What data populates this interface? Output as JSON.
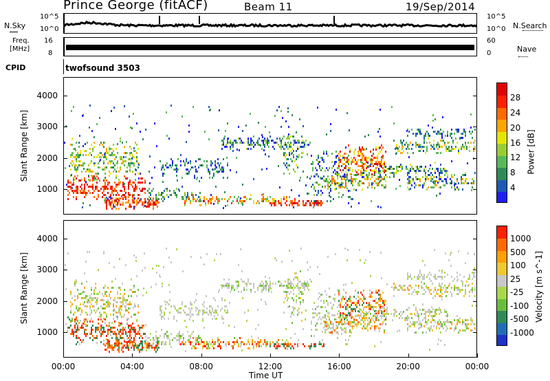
{
  "header": {
    "station": "Prince George (fitACF)",
    "beam": "Beam 11",
    "date": "19/Sep/2014"
  },
  "noise_panel": {
    "left_label": "N.Sky",
    "right_label": "N.Search",
    "tick_top": "10^5",
    "tick_bottom": "10^0",
    "tick_top_right": "10^5",
    "tick_bottom_right": "10^0"
  },
  "freq_panel": {
    "left_label_1": "Freq.",
    "left_label_2": "[MHz]",
    "left_tick_top": "16",
    "left_tick_bottom": "8",
    "right_label": "Nave",
    "right_tick_top": "60",
    "right_tick_bottom": "0"
  },
  "cpid_panel": {
    "label": "CPID",
    "value": "twofsound 3503"
  },
  "chart_data": [
    {
      "type": "heatmap",
      "name": "power",
      "ylabel": "Slant Range [km]",
      "yticks": [
        "1000",
        "2000",
        "3000",
        "4000"
      ],
      "ylim": [
        180,
        4600
      ],
      "xlim": [
        0,
        24
      ],
      "colorbar_label": "Power [dB]",
      "colorbar_ticks": [
        "4",
        "8",
        "12",
        "16",
        "20",
        "24",
        "28"
      ],
      "colorbar_colors": [
        "#1e1ef0",
        "#1e5ab4",
        "#2e8b57",
        "#58b95a",
        "#9acd32",
        "#e6e600",
        "#ffa500",
        "#ff6a00",
        "#ff2000",
        "#e00000"
      ]
    },
    {
      "type": "heatmap",
      "name": "velocity",
      "ylabel": "Slant Range [km]",
      "yticks": [
        "1000",
        "2000",
        "3000",
        "4000"
      ],
      "ylim": [
        180,
        4600
      ],
      "xlim": [
        0,
        24
      ],
      "colorbar_label": "Velocity [m s^-1]",
      "colorbar_ticks": [
        "1000",
        "500",
        "100",
        "25",
        "-25",
        "-100",
        "-500",
        "-1000"
      ],
      "colorbar_colors": [
        "#1e32c8",
        "#1e6eb4",
        "#2e8b57",
        "#6abf3a",
        "#a9d94a",
        "#c8c8c8",
        "#f0c830",
        "#ffa000",
        "#ff6a00",
        "#ff2000"
      ]
    }
  ],
  "xaxis": {
    "ticks": [
      "00:00",
      "04:00",
      "08:00",
      "12:00",
      "16:00",
      "20:00",
      "00:00"
    ],
    "label": "Time UT"
  }
}
